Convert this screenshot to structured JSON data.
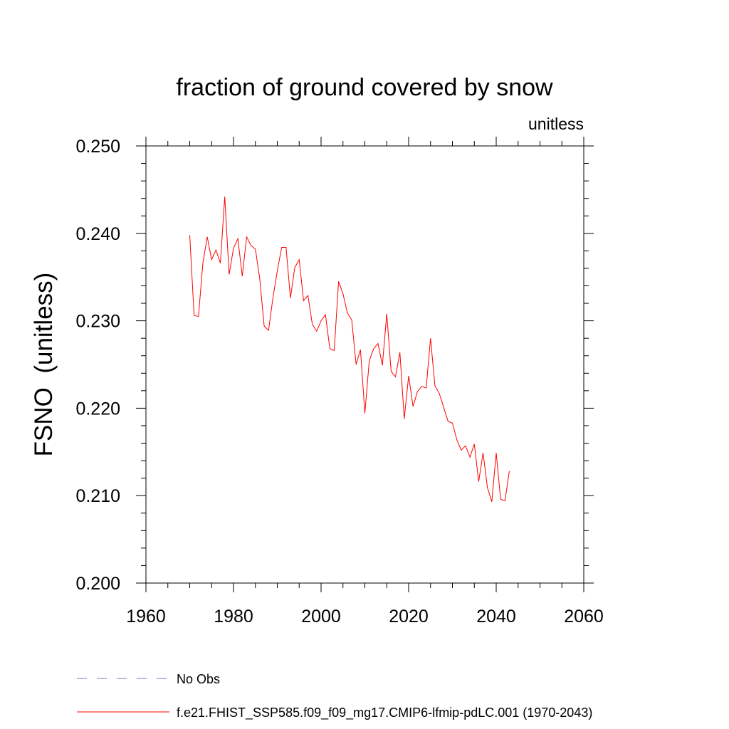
{
  "chart_data": {
    "type": "line",
    "title": "fraction of ground covered by snow",
    "units_label": "unitless",
    "ylabel": "FSNO  (unitless)",
    "xlabel": "",
    "xlim": [
      1960,
      2060
    ],
    "ylim": [
      0.2,
      0.25
    ],
    "x_ticks": [
      1960,
      1980,
      2000,
      2020,
      2040,
      2060
    ],
    "x_tick_labels": [
      "1960",
      "1980",
      "2000",
      "2020",
      "2040",
      "2060"
    ],
    "y_ticks": [
      0.2,
      0.21,
      0.22,
      0.23,
      0.24,
      0.25
    ],
    "y_tick_labels": [
      "0.200",
      "0.210",
      "0.220",
      "0.230",
      "0.240",
      "0.250"
    ],
    "grid": false,
    "legend_position": "bottom-left",
    "legend": [
      {
        "label": "No Obs",
        "style": "dashed",
        "color": "#7b74b8"
      },
      {
        "label": "f.e21.FHIST_SSP585.f09_f09_mg17.CMIP6-lfmip-pdLC.001 (1970-2043)",
        "style": "solid",
        "color": "#ff0000"
      }
    ],
    "series": [
      {
        "color": "#ff0000",
        "x": [
          1970,
          1971,
          1972,
          1973,
          1974,
          1975,
          1976,
          1977,
          1978,
          1979,
          1980,
          1981,
          1982,
          1983,
          1984,
          1985,
          1986,
          1987,
          1988,
          1989,
          1990,
          1991,
          1992,
          1993,
          1994,
          1995,
          1996,
          1997,
          1998,
          1999,
          2000,
          2001,
          2002,
          2003,
          2004,
          2005,
          2006,
          2007,
          2008,
          2009,
          2010,
          2011,
          2012,
          2013,
          2014,
          2015,
          2016,
          2017,
          2018,
          2019,
          2020,
          2021,
          2022,
          2023,
          2024,
          2025,
          2026,
          2027,
          2028,
          2029,
          2030,
          2031,
          2032,
          2033,
          2034,
          2035,
          2036,
          2037,
          2038,
          2039,
          2040,
          2041,
          2042,
          2043
        ],
        "values": [
          0.2398,
          0.2306,
          0.2305,
          0.2366,
          0.2396,
          0.237,
          0.2381,
          0.2366,
          0.2442,
          0.2353,
          0.2383,
          0.2394,
          0.2351,
          0.2396,
          0.2386,
          0.2382,
          0.2348,
          0.2294,
          0.2289,
          0.2326,
          0.2357,
          0.2384,
          0.2384,
          0.2326,
          0.2361,
          0.237,
          0.2323,
          0.2329,
          0.2296,
          0.2288,
          0.23,
          0.2307,
          0.2268,
          0.2266,
          0.2345,
          0.2331,
          0.2309,
          0.2301,
          0.225,
          0.2267,
          0.2194,
          0.2254,
          0.2268,
          0.2274,
          0.2249,
          0.2308,
          0.2242,
          0.2236,
          0.2264,
          0.2188,
          0.2237,
          0.2202,
          0.2219,
          0.2225,
          0.2223,
          0.228,
          0.2226,
          0.2217,
          0.2201,
          0.2185,
          0.2183,
          0.2164,
          0.2152,
          0.2157,
          0.2144,
          0.2159,
          0.2116,
          0.2149,
          0.2109,
          0.2093,
          0.2149,
          0.2096,
          0.2094,
          0.2128
        ]
      }
    ]
  }
}
